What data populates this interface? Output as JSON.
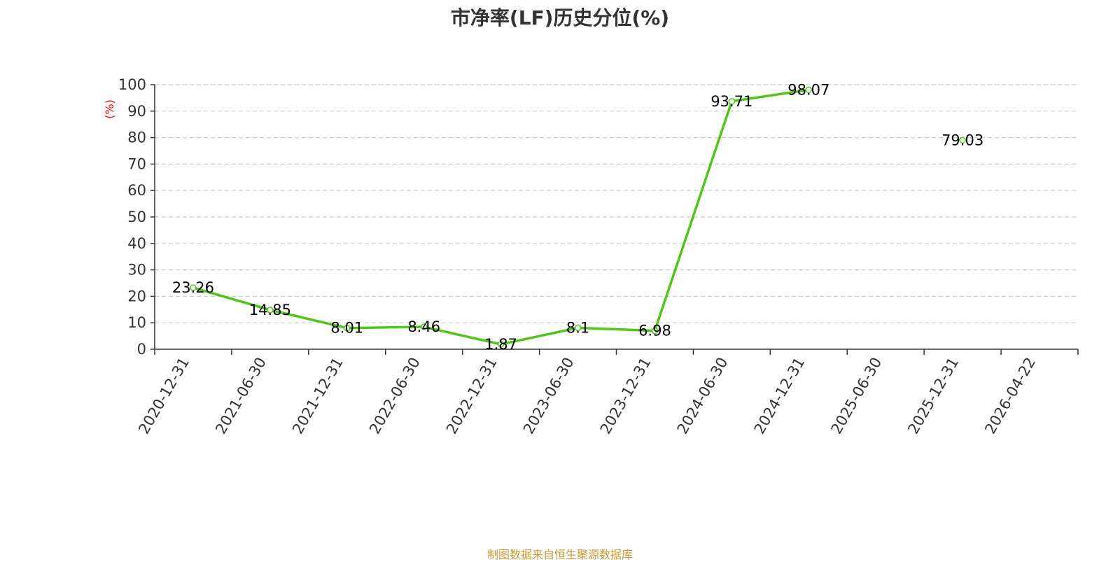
{
  "chart_data": {
    "type": "line",
    "title": "市净率(LF)历史分位(%)",
    "ylabel": "(%)",
    "xlabel": "",
    "ylim": [
      0,
      100
    ],
    "yticks": [
      0,
      10,
      20,
      30,
      40,
      50,
      60,
      70,
      80,
      90,
      100
    ],
    "grid": true,
    "categories": [
      "2020-12-31",
      "2021-06-30",
      "2021-12-31",
      "2022-06-30",
      "2022-12-31",
      "2023-06-30",
      "2023-12-31",
      "2024-06-30",
      "2024-12-31",
      "2025-06-30",
      "2025-12-31",
      "2026-04-22"
    ],
    "series": [
      {
        "values": [
          23.26,
          14.85,
          8.01,
          8.46,
          1.87,
          8.1,
          6.98,
          93.71,
          98.07,
          null,
          79.03,
          null
        ],
        "labels": [
          "23.26",
          "14.85",
          "8.01",
          "8.46",
          "1.87",
          "8.1",
          "6.98",
          "93.71",
          "98.07",
          "",
          "79.03",
          ""
        ]
      }
    ],
    "source": "制图数据来自恒生聚源数据库"
  },
  "colors": {
    "line": "#52c41a",
    "axis": "#333333",
    "grid": "#cccccc",
    "ylabel": "#ff0000",
    "source": "#cc9933"
  }
}
